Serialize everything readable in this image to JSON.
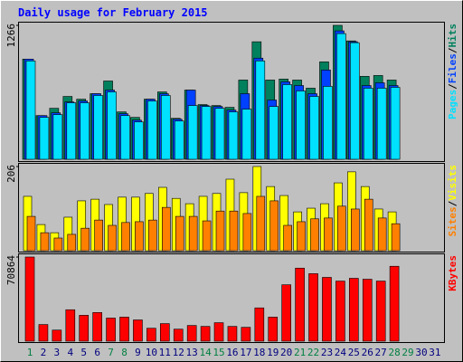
{
  "chart_data": [
    {
      "type": "bar",
      "title": "Daily usage for February 2015",
      "ylim": [
        0,
        1266
      ],
      "yticks": [
        1266
      ],
      "legend_separator": "/",
      "series": [
        {
          "name": "Hits",
          "color": "#00805c",
          "values": [
            947,
            413,
            482,
            594,
            568,
            620,
            740,
            448,
            396,
            568,
            637,
            387,
            654,
            517,
            508,
            491,
            749,
            1111,
            749,
            758,
            749,
            672,
            921,
            1266,
            1119,
            784,
            792,
            749,
            null,
            null,
            null
          ]
        },
        {
          "name": "Files",
          "color": "#0040ff",
          "values": [
            947,
            413,
            439,
            542,
            551,
            620,
            654,
            431,
            370,
            568,
            620,
            379,
            654,
            508,
            499,
            465,
            620,
            956,
            560,
            732,
            697,
            620,
            844,
            1214,
            1111,
            697,
            723,
            697,
            null,
            null,
            null
          ]
        },
        {
          "name": "Pages",
          "color": "#00e0ff",
          "values": [
            930,
            396,
            422,
            534,
            534,
            603,
            637,
            413,
            353,
            551,
            603,
            362,
            508,
            499,
            482,
            448,
            474,
            930,
            499,
            706,
            646,
            594,
            689,
            1188,
            1102,
            672,
            672,
            680,
            null,
            null,
            null
          ]
        }
      ]
    },
    {
      "type": "bar",
      "ylim": [
        0,
        206
      ],
      "yticks": [
        206
      ],
      "legend_separator": "/",
      "series": [
        {
          "name": "Visits",
          "color": "#ffff00",
          "values": [
            133,
            64,
            44,
            82,
            122,
            126,
            113,
            131,
            131,
            140,
            155,
            128,
            115,
            133,
            140,
            175,
            142,
            206,
            157,
            135,
            95,
            104,
            115,
            166,
            193,
            157,
            102,
            95,
            null,
            null,
            null
          ]
        },
        {
          "name": "Sites",
          "color": "#ff8000",
          "values": [
            84,
            44,
            31,
            40,
            55,
            75,
            62,
            69,
            71,
            75,
            106,
            84,
            84,
            73,
            97,
            97,
            91,
            133,
            122,
            62,
            71,
            78,
            80,
            109,
            102,
            126,
            80,
            66,
            null,
            null,
            null
          ]
        }
      ]
    },
    {
      "type": "bar",
      "ylim": [
        0,
        70864
      ],
      "yticks": [
        70864
      ],
      "categories": [
        "1",
        "2",
        "3",
        "4",
        "5",
        "6",
        "7",
        "8",
        "9",
        "10",
        "11",
        "12",
        "13",
        "14",
        "15",
        "16",
        "17",
        "18",
        "19",
        "20",
        "21",
        "22",
        "23",
        "24",
        "25",
        "26",
        "27",
        "28",
        "29",
        "30",
        "31"
      ],
      "category_colors": [
        "#008040",
        "#000080",
        "#000080",
        "#000080",
        "#000080",
        "#000080",
        "#008040",
        "#008040",
        "#000080",
        "#000080",
        "#000080",
        "#000080",
        "#000080",
        "#008040",
        "#008040",
        "#000080",
        "#000080",
        "#000080",
        "#000080",
        "#000080",
        "#008040",
        "#008040",
        "#000080",
        "#000080",
        "#000080",
        "#000080",
        "#000080",
        "#008040",
        "#008040",
        "#000080",
        "#000080"
      ],
      "series": [
        {
          "name": "KBytes",
          "color": "#ff0000",
          "values": [
            70864,
            14017,
            9344,
            26476,
            21804,
            24140,
            19468,
            20246,
            17910,
            10902,
            14795,
            10123,
            13238,
            12459,
            15574,
            12459,
            11681,
            28033,
            20246,
            47501,
            61517,
            56845,
            53730,
            50616,
            52952,
            52173,
            50616,
            63074,
            null,
            null,
            null
          ]
        }
      ]
    }
  ]
}
